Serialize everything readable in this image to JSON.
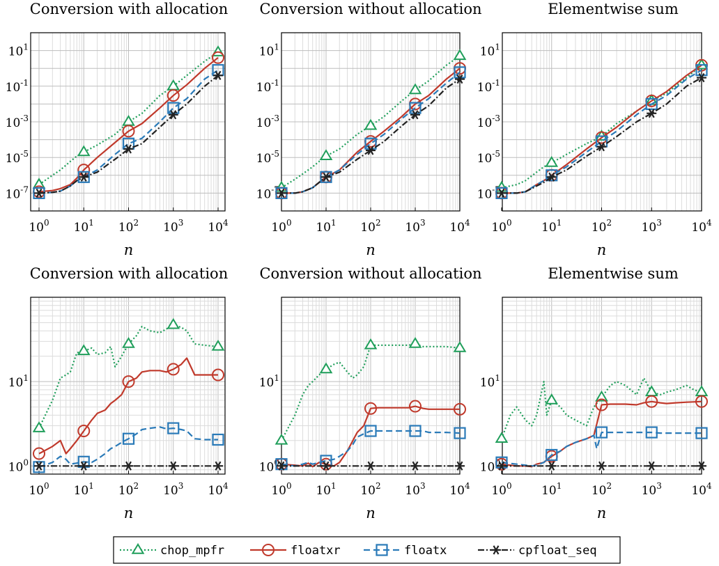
{
  "colors": {
    "chop_mpfr": "#1f9e5a",
    "floatxr": "#c0392b",
    "floatx": "#2a7ab8",
    "cpfloat_seq": "#222222"
  },
  "legend": {
    "placement": "bottom-center",
    "entries": [
      "chop_mpfr",
      "floatxr",
      "floatx",
      "cpfloat_seq"
    ]
  },
  "chart_data": [
    {
      "type": "line",
      "title": "Conversion with allocation",
      "xlabel": "n",
      "xscale": "log",
      "yscale": "log",
      "xlim": [
        1,
        10000
      ],
      "ylim": [
        1e-08,
        100
      ],
      "yticks": [
        1e-07,
        1e-05,
        0.001,
        0.1,
        10
      ],
      "xticks": [
        1,
        10,
        100,
        1000,
        10000
      ],
      "grid": true,
      "series": [
        {
          "name": "chop_mpfr",
          "x": [
            1,
            2,
            3,
            5,
            7,
            10,
            20,
            50,
            100,
            200,
            500,
            1000,
            2000,
            5000,
            10000
          ],
          "y": [
            3e-07,
            1e-06,
            2e-06,
            6e-06,
            1.2e-05,
            2e-05,
            5e-05,
            0.0002,
            0.001,
            0.003,
            0.03,
            0.1,
            0.4,
            2.5,
            8
          ]
        },
        {
          "name": "floatxr",
          "x": [
            1,
            2,
            3,
            5,
            7,
            10,
            20,
            50,
            100,
            200,
            500,
            1000,
            2000,
            5000,
            10000
          ],
          "y": [
            1.2e-07,
            1.4e-07,
            1.8e-07,
            3e-07,
            7e-07,
            2e-06,
            1e-05,
            7e-05,
            0.0003,
            0.0008,
            0.006,
            0.03,
            0.12,
            1,
            4
          ]
        },
        {
          "name": "floatx",
          "x": [
            1,
            2,
            3,
            5,
            7,
            10,
            20,
            50,
            100,
            200,
            500,
            1000,
            2000,
            5000,
            10000
          ],
          "y": [
            1e-07,
            1.1e-07,
            1.3e-07,
            2.5e-07,
            5e-07,
            8e-07,
            2e-06,
            1.5e-05,
            6e-05,
            0.00012,
            0.001,
            0.006,
            0.02,
            0.25,
            0.8
          ]
        },
        {
          "name": "cpfloat_seq",
          "x": [
            1,
            2,
            3,
            5,
            7,
            10,
            20,
            50,
            100,
            200,
            500,
            1000,
            2000,
            5000,
            10000
          ],
          "y": [
            1e-07,
            1.1e-07,
            1.3e-07,
            2.5e-07,
            5e-07,
            8e-07,
            1.5e-06,
            8e-06,
            3e-05,
            6e-05,
            0.0005,
            0.0025,
            0.01,
            0.1,
            0.4
          ]
        }
      ]
    },
    {
      "type": "line",
      "title": "Conversion without allocation",
      "xlabel": "n",
      "xscale": "log",
      "yscale": "log",
      "xlim": [
        1,
        10000
      ],
      "ylim": [
        1e-08,
        100
      ],
      "yticks": [
        1e-07,
        1e-05,
        0.001,
        0.1,
        10
      ],
      "xticks": [
        1,
        10,
        100,
        1000,
        10000
      ],
      "grid": true,
      "series": [
        {
          "name": "chop_mpfr",
          "x": [
            1,
            2,
            3,
            5,
            7,
            10,
            20,
            50,
            100,
            200,
            500,
            1000,
            2000,
            5000,
            10000
          ],
          "y": [
            2e-07,
            6e-07,
            1.2e-06,
            3e-06,
            6e-06,
            1.2e-05,
            3e-05,
            0.0002,
            0.0006,
            0.002,
            0.015,
            0.06,
            0.2,
            1.5,
            5
          ]
        },
        {
          "name": "floatxr",
          "x": [
            1,
            2,
            3,
            5,
            7,
            10,
            20,
            50,
            100,
            200,
            500,
            1000,
            2000,
            5000,
            10000
          ],
          "y": [
            1e-07,
            1e-07,
            1.2e-07,
            2e-07,
            4e-07,
            8e-07,
            2e-06,
            2e-05,
            8e-05,
            0.0003,
            0.002,
            0.01,
            0.03,
            0.25,
            1
          ]
        },
        {
          "name": "floatx",
          "x": [
            1,
            2,
            3,
            5,
            7,
            10,
            20,
            50,
            100,
            200,
            500,
            1000,
            2000,
            5000,
            10000
          ],
          "y": [
            1e-07,
            1e-07,
            1.2e-07,
            2e-07,
            4e-07,
            8e-07,
            2e-06,
            1.5e-05,
            6e-05,
            0.0002,
            0.0015,
            0.006,
            0.02,
            0.15,
            0.6
          ]
        },
        {
          "name": "cpfloat_seq",
          "x": [
            1,
            2,
            3,
            5,
            7,
            10,
            20,
            50,
            100,
            200,
            500,
            1000,
            2000,
            5000,
            10000
          ],
          "y": [
            1e-07,
            1e-07,
            1.2e-07,
            2e-07,
            4e-07,
            8e-07,
            1.5e-06,
            8e-06,
            2.5e-05,
            8e-05,
            0.0006,
            0.0025,
            0.008,
            0.08,
            0.25
          ]
        }
      ]
    },
    {
      "type": "line",
      "title": "Elementwise sum",
      "xlabel": "n",
      "xscale": "log",
      "yscale": "log",
      "xlim": [
        1,
        10000
      ],
      "ylim": [
        1e-08,
        100
      ],
      "yticks": [
        1e-07,
        1e-05,
        0.001,
        0.1,
        10
      ],
      "xticks": [
        1,
        10,
        100,
        1000,
        10000
      ],
      "grid": true,
      "series": [
        {
          "name": "chop_mpfr",
          "x": [
            1,
            2,
            3,
            5,
            7,
            10,
            20,
            50,
            100,
            200,
            500,
            1000,
            2000,
            5000,
            10000
          ],
          "y": [
            2e-07,
            3e-07,
            5e-07,
            1.5e-06,
            3e-06,
            5e-06,
            1.5e-05,
            6e-05,
            0.00015,
            0.0008,
            0.004,
            0.015,
            0.04,
            0.3,
            1.5
          ]
        },
        {
          "name": "floatxr",
          "x": [
            1,
            2,
            3,
            5,
            7,
            10,
            20,
            50,
            100,
            200,
            500,
            1000,
            2000,
            5000,
            10000
          ],
          "y": [
            1e-07,
            1e-07,
            1.2e-07,
            3e-07,
            5e-07,
            1e-06,
            4e-06,
            3e-05,
            0.00013,
            0.0005,
            0.004,
            0.015,
            0.05,
            0.4,
            1.5
          ]
        },
        {
          "name": "floatx",
          "x": [
            1,
            2,
            3,
            5,
            7,
            10,
            20,
            50,
            100,
            200,
            500,
            1000,
            2000,
            5000,
            10000
          ],
          "y": [
            1e-07,
            1e-07,
            1.2e-07,
            3e-07,
            5e-07,
            1e-06,
            3e-06,
            2e-05,
            8e-05,
            0.0003,
            0.0025,
            0.01,
            0.03,
            0.25,
            0.8
          ]
        },
        {
          "name": "cpfloat_seq",
          "x": [
            1,
            2,
            3,
            5,
            7,
            10,
            20,
            50,
            100,
            200,
            500,
            1000,
            2000,
            5000,
            10000
          ],
          "y": [
            1e-07,
            1e-07,
            1.2e-07,
            2.5e-07,
            4e-07,
            8e-07,
            2e-06,
            1.2e-05,
            4e-05,
            0.00015,
            0.001,
            0.003,
            0.01,
            0.1,
            0.3
          ]
        }
      ]
    },
    {
      "type": "line",
      "title": "Conversion with allocation",
      "xlabel": "n",
      "xscale": "log",
      "yscale": "log",
      "xlim": [
        1,
        10000
      ],
      "ylim": [
        0.8,
        100
      ],
      "yticks": [
        1,
        10
      ],
      "xticks": [
        1,
        10,
        100,
        1000,
        10000
      ],
      "grid": true,
      "series": [
        {
          "name": "chop_mpfr",
          "x": [
            1,
            2,
            3,
            4,
            5,
            7,
            10,
            15,
            20,
            30,
            40,
            50,
            70,
            100,
            150,
            200,
            300,
            500,
            700,
            1000,
            1500,
            2000,
            3000,
            5000,
            10000
          ],
          "y": [
            2.8,
            6,
            11,
            12,
            13,
            22,
            23,
            25,
            21,
            22,
            26,
            15,
            20,
            28,
            35,
            45,
            40,
            38,
            42,
            47,
            44,
            40,
            28,
            27,
            26
          ]
        },
        {
          "name": "floatxr",
          "x": [
            1,
            2,
            3,
            4,
            5,
            7,
            10,
            15,
            20,
            30,
            40,
            50,
            70,
            100,
            150,
            200,
            300,
            500,
            700,
            1000,
            1500,
            2000,
            3000,
            5000,
            10000
          ],
          "y": [
            1.4,
            1.7,
            2.0,
            1.4,
            1.6,
            2.0,
            2.6,
            3.5,
            4.2,
            4.6,
            5.5,
            6,
            7,
            10,
            11,
            13,
            13.5,
            13.5,
            13,
            14,
            16,
            19,
            12,
            12,
            12
          ]
        },
        {
          "name": "floatx",
          "x": [
            1,
            2,
            3,
            4,
            5,
            7,
            10,
            15,
            20,
            30,
            40,
            50,
            70,
            100,
            150,
            200,
            300,
            500,
            700,
            1000,
            1500,
            2000,
            3000,
            5000,
            10000
          ],
          "y": [
            0.97,
            1.1,
            1.3,
            1.2,
            1.05,
            1.08,
            1.12,
            1.1,
            1.2,
            1.4,
            1.6,
            1.7,
            1.9,
            2.1,
            2.4,
            2.7,
            2.8,
            2.9,
            2.75,
            2.8,
            2.7,
            2.6,
            2.1,
            2.05,
            2.05
          ]
        },
        {
          "name": "cpfloat_seq",
          "x": [
            1,
            10,
            100,
            1000,
            10000
          ],
          "y": [
            1,
            1,
            1,
            1,
            1
          ]
        }
      ]
    },
    {
      "type": "line",
      "title": "Conversion without allocation",
      "xlabel": "n",
      "xscale": "log",
      "yscale": "log",
      "xlim": [
        1,
        10000
      ],
      "ylim": [
        0.8,
        100
      ],
      "yticks": [
        1,
        10
      ],
      "xticks": [
        1,
        10,
        100,
        1000,
        10000
      ],
      "grid": true,
      "series": [
        {
          "name": "chop_mpfr",
          "x": [
            1,
            2,
            3,
            4,
            5,
            7,
            10,
            15,
            20,
            30,
            40,
            50,
            70,
            100,
            150,
            200,
            300,
            500,
            700,
            1000,
            1500,
            2000,
            3000,
            5000,
            10000
          ],
          "y": [
            2,
            4,
            7,
            9,
            10,
            12,
            14,
            16,
            17,
            13,
            11,
            12,
            15,
            27,
            27,
            27,
            27,
            27,
            27,
            28,
            26,
            26,
            26,
            26,
            25
          ]
        },
        {
          "name": "floatxr",
          "x": [
            1,
            2,
            3,
            4,
            5,
            7,
            10,
            15,
            20,
            30,
            40,
            50,
            70,
            100,
            150,
            200,
            300,
            500,
            700,
            1000,
            1500,
            2000,
            3000,
            5000,
            10000
          ],
          "y": [
            1.05,
            1.02,
            1.0,
            1.08,
            0.98,
            1.1,
            1.05,
            1.0,
            1.1,
            1.5,
            2.0,
            2.5,
            3.0,
            4.8,
            4.9,
            4.9,
            4.9,
            4.9,
            4.9,
            5.1,
            4.8,
            4.7,
            4.7,
            4.7,
            4.7
          ]
        },
        {
          "name": "floatx",
          "x": [
            1,
            2,
            3,
            4,
            5,
            7,
            10,
            15,
            20,
            30,
            40,
            50,
            70,
            100,
            150,
            200,
            300,
            500,
            700,
            1000,
            1500,
            2000,
            3000,
            5000,
            10000
          ],
          "y": [
            1.05,
            1.0,
            1.05,
            1.1,
            1.05,
            1.1,
            1.15,
            1.2,
            1.3,
            1.5,
            1.8,
            2.2,
            2.4,
            2.6,
            2.6,
            2.6,
            2.6,
            2.6,
            2.6,
            2.6,
            2.6,
            2.5,
            2.5,
            2.5,
            2.45
          ]
        },
        {
          "name": "cpfloat_seq",
          "x": [
            1,
            10,
            100,
            1000,
            10000
          ],
          "y": [
            1,
            1,
            1,
            1,
            1
          ]
        }
      ]
    },
    {
      "type": "line",
      "title": "Elementwise sum",
      "xlabel": "n",
      "xscale": "log",
      "yscale": "log",
      "xlim": [
        1,
        10000
      ],
      "ylim": [
        0.8,
        100
      ],
      "yticks": [
        1,
        10
      ],
      "xticks": [
        1,
        10,
        100,
        1000,
        10000
      ],
      "grid": true,
      "series": [
        {
          "name": "chop_mpfr",
          "x": [
            1,
            1.5,
            2,
            3,
            4,
            5,
            7,
            8,
            10,
            15,
            20,
            30,
            50,
            70,
            100,
            150,
            200,
            300,
            500,
            700,
            1000,
            1500,
            2000,
            3000,
            5000,
            7000,
            10000
          ],
          "y": [
            2.1,
            4,
            5,
            3.5,
            3,
            4,
            10,
            4,
            6,
            5,
            4,
            3.5,
            3,
            5,
            6.5,
            9,
            10,
            9,
            7,
            11,
            7.5,
            7,
            7.5,
            8,
            9,
            8,
            7.5
          ]
        },
        {
          "name": "floatxr",
          "x": [
            1,
            2,
            3,
            4,
            5,
            7,
            10,
            15,
            20,
            30,
            50,
            70,
            100,
            150,
            200,
            300,
            500,
            700,
            1000,
            1500,
            2000,
            3000,
            5000,
            10000
          ],
          "y": [
            1.05,
            1.0,
            1.0,
            0.98,
            1.05,
            1.1,
            1.3,
            1.5,
            1.7,
            1.9,
            2.1,
            2.3,
            5.3,
            5.4,
            5.4,
            5.4,
            5.3,
            5.6,
            5.8,
            5.6,
            5.5,
            5.6,
            5.7,
            5.8
          ]
        },
        {
          "name": "floatx",
          "x": [
            1,
            2,
            3,
            4,
            5,
            7,
            10,
            15,
            20,
            30,
            50,
            70,
            80,
            100,
            150,
            200,
            300,
            500,
            700,
            1000,
            1500,
            2000,
            3000,
            5000,
            10000
          ],
          "y": [
            1.1,
            1.05,
            1.02,
            1.0,
            1.02,
            1.1,
            1.35,
            1.5,
            1.7,
            1.9,
            2.1,
            2.3,
            1.6,
            2.5,
            2.5,
            2.5,
            2.5,
            2.5,
            2.5,
            2.5,
            2.45,
            2.45,
            2.45,
            2.45,
            2.45
          ]
        },
        {
          "name": "cpfloat_seq",
          "x": [
            1,
            10,
            100,
            1000,
            10000
          ],
          "y": [
            1,
            1,
            1,
            1,
            1
          ]
        }
      ]
    }
  ]
}
